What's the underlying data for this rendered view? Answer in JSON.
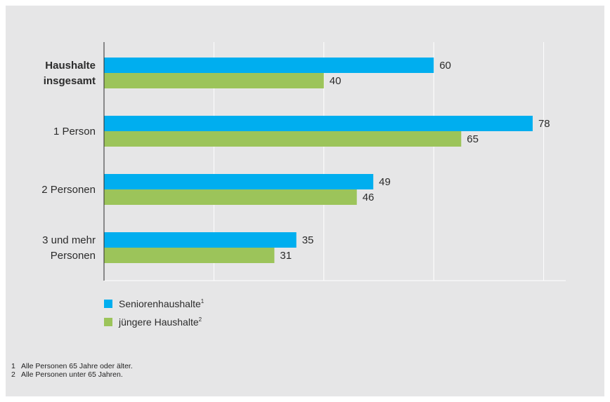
{
  "chart_data": {
    "type": "bar",
    "orientation": "horizontal",
    "categories": [
      {
        "lines": [
          "Haushalte",
          "insgesamt"
        ],
        "bold": true
      },
      {
        "lines": [
          "1 Person"
        ],
        "bold": false
      },
      {
        "lines": [
          "2 Personen"
        ],
        "bold": false
      },
      {
        "lines": [
          "3 und mehr",
          "Personen"
        ],
        "bold": false
      }
    ],
    "series": [
      {
        "name": "Seniorenhaushalte",
        "sup": "1",
        "color": "#00aeef",
        "values": [
          60,
          78,
          49,
          35
        ]
      },
      {
        "name": "jüngere Haushalte",
        "sup": "2",
        "color": "#9cc45a",
        "values": [
          40,
          65,
          46,
          31
        ]
      }
    ],
    "xlim": [
      0,
      80
    ],
    "gridlines": [
      20,
      40,
      60,
      80
    ],
    "grid": true,
    "legend_position": "bottom-left"
  },
  "footnotes": [
    {
      "num": "1",
      "text": "Alle Personen 65 Jahre oder älter."
    },
    {
      "num": "2",
      "text": "Alle Personen unter 65 Jahren."
    }
  ]
}
